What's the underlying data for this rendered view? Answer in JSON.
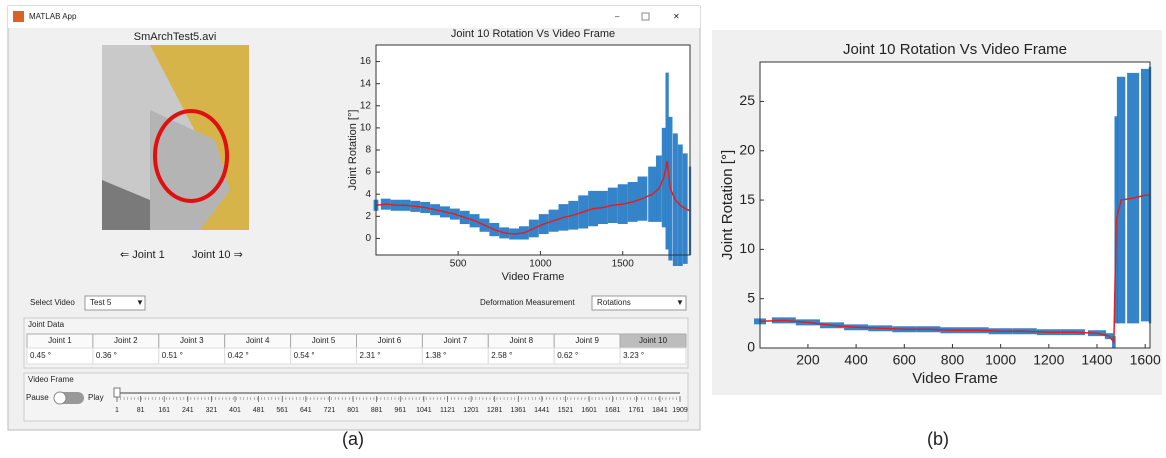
{
  "figure_a": {
    "window_title": "MATLAB App",
    "video_title": "SmArchTest5.avi",
    "joint_prev": "⇐ Joint  1",
    "joint_next": "Joint  10 ⇒",
    "plot": {
      "type": "line",
      "title": "Joint  10  Rotation Vs Video Frame",
      "xlabel": "Video Frame",
      "ylabel": "Joint Rotation [°]",
      "x": [
        1,
        60,
        120,
        180,
        240,
        300,
        360,
        420,
        480,
        540,
        600,
        660,
        720,
        780,
        840,
        900,
        960,
        1020,
        1080,
        1140,
        1200,
        1260,
        1320,
        1380,
        1440,
        1500,
        1560,
        1620,
        1680,
        1720,
        1750,
        1770,
        1790,
        1820,
        1850,
        1880,
        1909
      ],
      "values": [
        3.0,
        3.1,
        3.0,
        3.0,
        2.9,
        2.8,
        2.6,
        2.4,
        2.2,
        1.9,
        1.6,
        1.2,
        0.8,
        0.5,
        0.4,
        0.5,
        0.9,
        1.3,
        1.6,
        1.9,
        2.1,
        2.4,
        2.7,
        2.8,
        3.0,
        3.1,
        3.3,
        3.6,
        4.0,
        4.5,
        5.5,
        7.0,
        4.5,
        3.5,
        3.0,
        2.7,
        2.5
      ],
      "errors": [
        0.5,
        0.5,
        0.5,
        0.5,
        0.5,
        0.5,
        0.5,
        0.5,
        0.5,
        0.6,
        0.6,
        0.6,
        0.6,
        0.5,
        0.5,
        0.6,
        0.8,
        0.9,
        1.0,
        1.2,
        1.3,
        1.5,
        1.6,
        1.5,
        1.6,
        1.8,
        1.8,
        2.0,
        2.5,
        3.0,
        4.5,
        8.0,
        6.5,
        6.0,
        5.5,
        5.0,
        4.0
      ],
      "line_color": "#e02020",
      "error_color": "#1f77c4",
      "xlim": [
        1,
        1909
      ],
      "ylim": [
        -1.5,
        17.5
      ],
      "xticks": [
        500,
        1000,
        1500
      ],
      "yticks": [
        0,
        2,
        4,
        6,
        8,
        10,
        12,
        14,
        16
      ]
    },
    "select_video_label": "Select Video",
    "select_video_value": "Test 5",
    "measurement_label": "Deformation Measurement",
    "measurement_value": "Rotations",
    "joint_data": {
      "title": "Joint Data",
      "tabs": [
        "Joint 1",
        "Joint 2",
        "Joint 3",
        "Joint 4",
        "Joint 5",
        "Joint 6",
        "Joint 7",
        "Joint 8",
        "Joint 9",
        "Joint 10"
      ],
      "values": [
        "0.45 °",
        "0.36 °",
        "0.51 °",
        "0.42 °",
        "0.54 °",
        "2.31 °",
        "1.38 °",
        "2.58 °",
        "0.62 °",
        "3.23 °"
      ],
      "selected": 9
    },
    "video_frame": {
      "title": "Video Frame",
      "pause": "Pause",
      "play": "Play",
      "ticks": [
        1,
        81,
        161,
        241,
        321,
        401,
        481,
        561,
        641,
        721,
        801,
        881,
        961,
        1041,
        1121,
        1201,
        1281,
        1361,
        1441,
        1521,
        1601,
        1681,
        1761,
        1841,
        1909
      ]
    },
    "caption": "(a)"
  },
  "figure_b": {
    "plot": {
      "type": "line",
      "title": "Joint  10  Rotation Vs Video Frame",
      "xlabel": "Video Frame",
      "ylabel": "Joint Rotation [°]",
      "x": [
        1,
        100,
        200,
        300,
        400,
        500,
        600,
        700,
        800,
        900,
        1000,
        1100,
        1200,
        1300,
        1400,
        1450,
        1470,
        1480,
        1500,
        1550,
        1600,
        1620
      ],
      "values": [
        2.7,
        2.8,
        2.6,
        2.3,
        2.1,
        2.0,
        1.9,
        1.9,
        1.8,
        1.8,
        1.7,
        1.7,
        1.6,
        1.6,
        1.5,
        1.2,
        0.6,
        13,
        15,
        15.2,
        15.5,
        15.5
      ],
      "errors": [
        0.3,
        0.3,
        0.3,
        0.3,
        0.3,
        0.3,
        0.3,
        0.3,
        0.3,
        0.3,
        0.3,
        0.3,
        0.3,
        0.3,
        0.3,
        0.3,
        0.6,
        10.5,
        12.5,
        12.7,
        12.8,
        13
      ],
      "line_color": "#e02020",
      "error_color": "#1f77c4",
      "xlim": [
        1,
        1620
      ],
      "ylim": [
        0,
        29
      ],
      "xticks": [
        200,
        400,
        600,
        800,
        1000,
        1200,
        1400,
        1600
      ],
      "yticks": [
        0,
        5,
        10,
        15,
        20,
        25
      ]
    },
    "caption": "(b)"
  }
}
